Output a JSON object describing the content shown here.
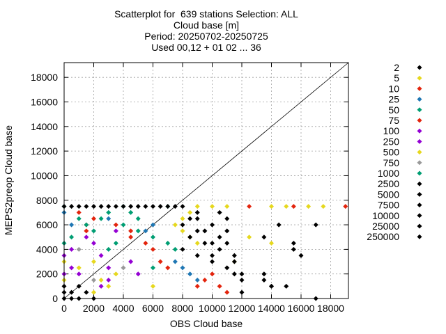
{
  "title_lines": [
    "Scatterplot for  639 stations Selection: ALL",
    "Cloud base [m]",
    "Period: 20250702-20250725",
    "Used 00,12 + 01 02 ... 36"
  ],
  "chart_data": {
    "type": "scatter",
    "xlabel": "OBS Cloud base",
    "ylabel": "MEPS2preop Cloud base",
    "xlim": [
      0,
      19200
    ],
    "ylim": [
      0,
      19200
    ],
    "xticks": [
      0,
      2000,
      4000,
      6000,
      8000,
      10000,
      12000,
      14000,
      16000,
      18000
    ],
    "yticks": [
      0,
      2000,
      4000,
      6000,
      8000,
      10000,
      12000,
      14000,
      16000,
      18000
    ],
    "grid": true,
    "diagonal_line": true,
    "legend_placement": "right",
    "series": [
      {
        "name": "2",
        "color": "#000000",
        "x": [
          0,
          0,
          0,
          500,
          500,
          1000,
          1000,
          1500,
          2000,
          9000,
          9500,
          10000,
          10500,
          11000
        ],
        "y": [
          0,
          500,
          1000,
          0,
          500,
          0,
          1000,
          500,
          0,
          6500,
          5500,
          6000,
          5000,
          4500
        ]
      },
      {
        "name": "5",
        "color": "#e6d81e",
        "x": [
          0,
          2000,
          3500,
          6000,
          7500,
          8000,
          8500,
          9000,
          10000,
          11000,
          14000,
          15000,
          16500,
          17500
        ],
        "y": [
          3000,
          3000,
          2000,
          1000,
          6000,
          6500,
          7000,
          7500,
          7500,
          7500,
          7500,
          7500,
          7500,
          7500
        ]
      },
      {
        "name": "10",
        "color": "#e3240d",
        "x": [
          1500,
          2000,
          4500,
          6500,
          7000,
          9000,
          9500,
          10000,
          10500,
          11000,
          12500,
          15500,
          19000
        ],
        "y": [
          6000,
          6500,
          5000,
          3000,
          2500,
          1000,
          1500,
          2000,
          1000,
          500,
          7500,
          7500,
          7500
        ]
      },
      {
        "name": "25",
        "color": "#1f77b4",
        "x": [
          0,
          500,
          3000,
          5500,
          6000,
          7500,
          8000,
          8500,
          9000
        ],
        "y": [
          7000,
          6000,
          6500,
          5500,
          6000,
          3000,
          2500,
          2000,
          1500
        ]
      },
      {
        "name": "50",
        "color": "#009e73",
        "x": [
          0,
          1000,
          3000,
          3500,
          4000,
          4500,
          5000,
          6000,
          7000
        ],
        "y": [
          7500,
          6500,
          4000,
          4500,
          7500,
          7000,
          6500,
          2500,
          7500
        ]
      },
      {
        "name": "75",
        "color": "#e3240d",
        "x": [
          1000,
          1500,
          3500,
          4500,
          5500,
          6000
        ],
        "y": [
          7000,
          5500,
          6000,
          5500,
          4500,
          4000
        ]
      },
      {
        "name": "100",
        "color": "#9400d3",
        "x": [
          0,
          500,
          1000,
          1500,
          2000,
          2500,
          3000,
          3500
        ],
        "y": [
          3500,
          2500,
          2000,
          5000,
          4500,
          1000,
          1500,
          5500
        ]
      },
      {
        "name": "250",
        "color": "#9400d3",
        "x": [
          0,
          500,
          2500,
          3000,
          4500,
          5000
        ],
        "y": [
          2000,
          4000,
          3500,
          2500,
          3000,
          2000
        ]
      },
      {
        "name": "500",
        "color": "#e6d81e",
        "x": [
          0,
          1000,
          2000,
          2500,
          3000,
          8000,
          8500,
          9000,
          11500,
          12500,
          14000
        ],
        "y": [
          1500,
          2500,
          500,
          1500,
          1000,
          5500,
          5000,
          4500,
          3000,
          5000,
          4500
        ]
      },
      {
        "name": "750",
        "color": "#999999",
        "x": [
          1000,
          2000,
          4000
        ],
        "y": [
          4000,
          1500,
          2500
        ]
      },
      {
        "name": "1000",
        "color": "#009e73",
        "x": [
          0,
          500,
          1500,
          2000,
          2500,
          3000,
          4000,
          5000,
          6000,
          7000,
          7500
        ],
        "y": [
          4500,
          5000,
          6000,
          5500,
          6500,
          7000,
          6000,
          5500,
          5000,
          4500,
          4000
        ]
      },
      {
        "name": "2500",
        "color": "#000000",
        "x": [
          8000,
          8500,
          9000,
          9500,
          10000,
          10500,
          11000,
          11500,
          12000,
          13500,
          14000,
          15500,
          16000,
          17000
        ],
        "y": [
          4000,
          5000,
          3500,
          4500,
          3000,
          4000,
          2500,
          3000,
          2000,
          1500,
          1000,
          4000,
          3500,
          6000
        ]
      },
      {
        "name": "5000",
        "color": "#000000",
        "x": [
          8000,
          9000,
          10000,
          11000,
          12000,
          13500,
          15500
        ],
        "y": [
          6000,
          5500,
          4500,
          5500,
          1500,
          5000,
          4500
        ]
      },
      {
        "name": "7500",
        "color": "#000000",
        "x": [
          8500,
          10000,
          11500,
          13500,
          14500,
          15000,
          17000
        ],
        "y": [
          6500,
          3500,
          2000,
          2000,
          6000,
          1000,
          0
        ]
      },
      {
        "name": "10000",
        "color": "#000000",
        "x": [
          9000,
          11000,
          12000,
          14000
        ],
        "y": [
          7000,
          6500,
          500,
          1000
        ]
      },
      {
        "name": "25000",
        "color": "#000000",
        "x": [
          10500,
          11500
        ],
        "y": [
          7000,
          3500
        ]
      },
      {
        "name": "250000",
        "color": "#000000",
        "x": [
          0,
          500,
          1000,
          1500,
          2000,
          2500,
          3000,
          3500,
          4000,
          4500,
          5000,
          5500,
          6000,
          6500,
          7000,
          7500,
          8000
        ],
        "y": [
          7500,
          7500,
          7500,
          7500,
          7500,
          7500,
          7500,
          7500,
          7500,
          7500,
          7500,
          7500,
          7500,
          7500,
          7500,
          7500,
          7500
        ]
      }
    ]
  }
}
